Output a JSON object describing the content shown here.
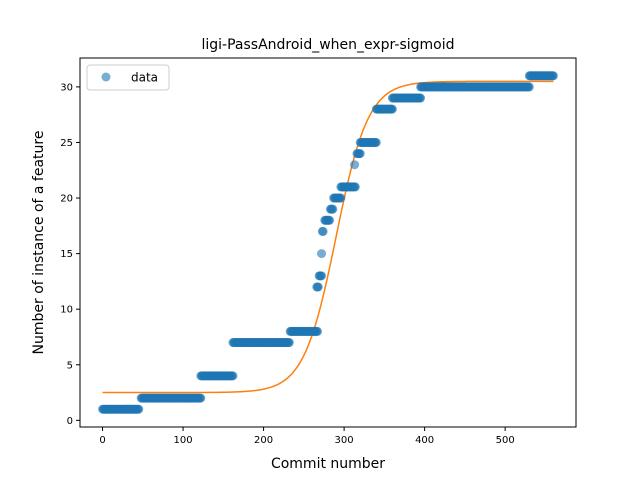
{
  "chart_data": {
    "type": "scatter",
    "title": "ligi-PassAndroid_when_expr-sigmoid",
    "xlabel": "Commit number",
    "ylabel": "Number of instance of a feature",
    "xlim": [
      -28,
      588
    ],
    "ylim": [
      -0.6,
      32.6
    ],
    "xticks": [
      0,
      100,
      200,
      300,
      400,
      500
    ],
    "yticks": [
      0,
      5,
      10,
      15,
      20,
      25,
      30
    ],
    "grid": false,
    "legend": {
      "placement": "top-left",
      "entries": [
        {
          "label": "data"
        }
      ]
    },
    "colors": {
      "data": "#1f77b4",
      "fit": "#ff7f0e"
    },
    "series": [
      {
        "name": "data",
        "kind": "scatter",
        "segments": [
          {
            "x_start": 0,
            "x_end": 45,
            "y": 1
          },
          {
            "x_start": 48,
            "x_end": 122,
            "y": 2
          },
          {
            "x_start": 122,
            "x_end": 162,
            "y": 4
          },
          {
            "x_start": 162,
            "x_end": 232,
            "y": 7
          },
          {
            "x_start": 233,
            "x_end": 267,
            "y": 8
          },
          {
            "x_start": 266,
            "x_end": 268,
            "y": 12
          },
          {
            "x_start": 269,
            "x_end": 272,
            "y": 13
          },
          {
            "x_start": 272,
            "x_end": 272,
            "y": 15
          },
          {
            "x_start": 273,
            "x_end": 274,
            "y": 17
          },
          {
            "x_start": 276,
            "x_end": 282,
            "y": 18
          },
          {
            "x_start": 283,
            "x_end": 286,
            "y": 19
          },
          {
            "x_start": 287,
            "x_end": 296,
            "y": 20
          },
          {
            "x_start": 296,
            "x_end": 314,
            "y": 21
          },
          {
            "x_start": 313,
            "x_end": 313,
            "y": 23
          },
          {
            "x_start": 316,
            "x_end": 320,
            "y": 24
          },
          {
            "x_start": 320,
            "x_end": 340,
            "y": 25
          },
          {
            "x_start": 340,
            "x_end": 360,
            "y": 28
          },
          {
            "x_start": 360,
            "x_end": 395,
            "y": 29
          },
          {
            "x_start": 395,
            "x_end": 530,
            "y": 30
          },
          {
            "x_start": 530,
            "x_end": 560,
            "y": 31
          }
        ]
      },
      {
        "name": "fit",
        "kind": "line",
        "sigmoid": {
          "low": 2.5,
          "high": 30.5,
          "midpoint": 290,
          "scale": 20
        },
        "x_range": [
          0,
          560
        ]
      }
    ]
  }
}
